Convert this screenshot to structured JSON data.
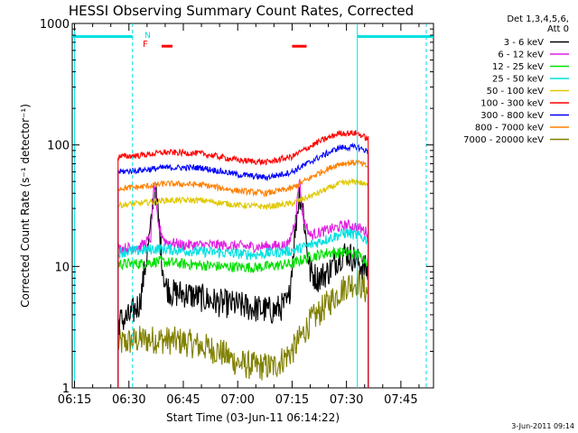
{
  "chart_data": {
    "type": "line",
    "title": "HESSI Observing Summary Count Rates, Corrected",
    "xlabel": "Start Time (03-Jun-11 06:14:22)",
    "ylabel": "Corrected Count Rate (s⁻¹ detector⁻¹)",
    "y_scale": "log",
    "ylim": [
      1,
      1000
    ],
    "y_ticks": [
      "1",
      "10",
      "100",
      "1000"
    ],
    "xlim": [
      "06:14:22",
      "07:54:00"
    ],
    "x_ticks": [
      "06:15",
      "06:30",
      "06:45",
      "07:00",
      "07:15",
      "07:30",
      "07:45"
    ],
    "timestamp": "3-Jun-2011 09:14",
    "legend": {
      "header": [
        "Det 1,3,4,5,6,",
        "Att 0"
      ],
      "entries": [
        {
          "label": "3 - 6 keV",
          "color": "#000000"
        },
        {
          "label": "6 - 12 keV",
          "color": "#e020e0"
        },
        {
          "label": "12 - 25 keV",
          "color": "#00e000"
        },
        {
          "label": "25 - 50 keV",
          "color": "#00e0e0"
        },
        {
          "label": "50 - 100 keV",
          "color": "#e0c800"
        },
        {
          "label": "100 - 300 keV",
          "color": "#ff0000"
        },
        {
          "label": "300 - 800 keV",
          "color": "#0000ff"
        },
        {
          "label": "800 - 7000 keV",
          "color": "#ff8000"
        },
        {
          "label": "7000 - 20000 keV",
          "color": "#808000"
        }
      ]
    },
    "flag_labels": [
      {
        "text": "N",
        "color": "#00e0e0"
      },
      {
        "text": "F",
        "color": "#ff0000"
      }
    ],
    "series": [
      {
        "name": "3 - 6 keV",
        "color": "#000000",
        "x": [
          "06:27",
          "06:30",
          "06:33",
          "06:36",
          "06:37",
          "06:38",
          "06:39",
          "06:40",
          "06:42",
          "06:45",
          "06:50",
          "06:55",
          "07:00",
          "07:05",
          "07:10",
          "07:14",
          "07:16",
          "07:17",
          "07:18",
          "07:19",
          "07:20",
          "07:22",
          "07:25",
          "07:28",
          "07:30",
          "07:33",
          "07:36"
        ],
        "values": [
          3.5,
          3.8,
          5,
          20,
          50,
          28,
          12,
          7,
          6,
          6,
          5.5,
          5,
          4.8,
          4.5,
          4.3,
          5,
          22,
          40,
          30,
          15,
          9,
          8,
          9,
          12,
          13,
          11,
          9
        ]
      },
      {
        "name": "6 - 12 keV",
        "color": "#e020e0",
        "x": [
          "06:27",
          "06:33",
          "06:36",
          "06:37",
          "06:38",
          "06:40",
          "06:45",
          "06:55",
          "07:05",
          "07:14",
          "07:16",
          "07:17",
          "07:18",
          "07:20",
          "07:25",
          "07:30",
          "07:33",
          "07:36"
        ],
        "values": [
          14,
          14.5,
          17,
          50,
          22,
          16,
          15,
          15,
          14.5,
          15,
          25,
          55,
          25,
          18,
          20,
          22,
          21,
          19
        ]
      },
      {
        "name": "12 - 25 keV",
        "color": "#00e000",
        "x": [
          "06:27",
          "06:33",
          "06:38",
          "06:45",
          "06:55",
          "07:05",
          "07:15",
          "07:20",
          "07:25",
          "07:30",
          "07:33",
          "07:36"
        ],
        "values": [
          10.5,
          10.5,
          11,
          10.5,
          10,
          9.8,
          10.5,
          12,
          13,
          13,
          12.5,
          11
        ]
      },
      {
        "name": "25 - 50 keV",
        "color": "#00e0e0",
        "x": [
          "06:27",
          "06:33",
          "06:38",
          "06:45",
          "06:55",
          "07:05",
          "07:15",
          "07:20",
          "07:25",
          "07:30",
          "07:33",
          "07:36"
        ],
        "values": [
          13,
          13.5,
          14,
          13.5,
          13,
          12.5,
          13.5,
          15,
          17,
          19,
          18,
          16.5
        ]
      },
      {
        "name": "50 - 100 keV",
        "color": "#e0c800",
        "x": [
          "06:27",
          "06:33",
          "06:40",
          "06:50",
          "07:00",
          "07:08",
          "07:15",
          "07:22",
          "07:28",
          "07:33",
          "07:36"
        ],
        "values": [
          32,
          33,
          35,
          35,
          32,
          31,
          33,
          40,
          48,
          50,
          46
        ]
      },
      {
        "name": "100 - 300 keV",
        "color": "#ff0000",
        "x": [
          "06:27",
          "06:33",
          "06:40",
          "06:50",
          "07:00",
          "07:08",
          "07:15",
          "07:22",
          "07:28",
          "07:33",
          "07:36"
        ],
        "values": [
          80,
          82,
          87,
          85,
          75,
          72,
          80,
          105,
          125,
          125,
          112
        ]
      },
      {
        "name": "300 - 800 keV",
        "color": "#0000ff",
        "x": [
          "06:27",
          "06:33",
          "06:40",
          "06:50",
          "07:00",
          "07:08",
          "07:15",
          "07:22",
          "07:28",
          "07:33",
          "07:36"
        ],
        "values": [
          60,
          62,
          65,
          65,
          57,
          54,
          60,
          78,
          95,
          96,
          88
        ]
      },
      {
        "name": "800 - 7000 keV",
        "color": "#ff8000",
        "x": [
          "06:27",
          "06:33",
          "06:40",
          "06:50",
          "07:00",
          "07:08",
          "07:15",
          "07:22",
          "07:28",
          "07:33",
          "07:36"
        ],
        "values": [
          44,
          45,
          48,
          47,
          42,
          40,
          44,
          58,
          70,
          72,
          66
        ]
      },
      {
        "name": "7000 - 20000 keV",
        "color": "#808000",
        "x": [
          "06:27",
          "06:33",
          "06:38",
          "06:45",
          "06:50",
          "06:55",
          "07:00",
          "07:05",
          "07:10",
          "07:15",
          "07:20",
          "07:25",
          "07:30",
          "07:33",
          "07:36"
        ],
        "values": [
          2.3,
          2.5,
          2.5,
          2.4,
          2.2,
          2,
          1.6,
          1.5,
          1.5,
          2,
          3.5,
          5,
          7,
          7.5,
          6
        ]
      }
    ],
    "observing_flags": [
      {
        "name": "night",
        "color": "#00e0e0",
        "level": 780,
        "x_start": "06:14:22",
        "x_end": "06:31"
      },
      {
        "name": "night",
        "color": "#00e0e0",
        "level": 780,
        "x_start": "07:33",
        "x_end": "07:54:00"
      },
      {
        "name": "flare",
        "color": "#ff0000",
        "level": 650,
        "x_start": "06:39",
        "x_end": "06:42"
      },
      {
        "name": "flare",
        "color": "#ff0000",
        "level": 650,
        "x_start": "07:15",
        "x_end": "07:19"
      }
    ],
    "vertical_markers": [
      {
        "color": "#00e0e0",
        "style": "solid",
        "x": "06:15"
      },
      {
        "color": "#00e0e0",
        "style": "dashed",
        "x": "06:31"
      },
      {
        "color": "#00e0e0",
        "style": "solid",
        "x": "07:33"
      },
      {
        "color": "#00e0e0",
        "style": "dashed",
        "x": "07:52"
      }
    ],
    "grid": false,
    "legend_position": "top-right"
  }
}
